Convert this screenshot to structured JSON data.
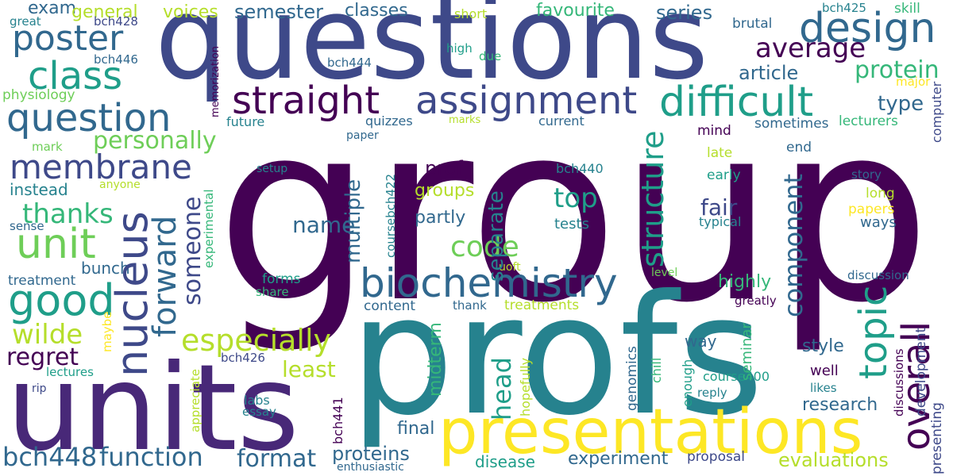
{
  "colors": {
    "background": "#ffffff",
    "palette": [
      "#440154",
      "#482878",
      "#3e4989",
      "#31688e",
      "#26828e",
      "#1f9e89",
      "#35b779",
      "#6ece58",
      "#b5de2b",
      "#fde725"
    ]
  },
  "words": {
    "group": "group",
    "questions": "questions",
    "profs": "profs",
    "units": "units",
    "presentations": "presentations",
    "design": "design",
    "poster": "poster",
    "class": "class",
    "question": "question",
    "straight": "straight",
    "assignment": "assignment",
    "difficult": "difficult",
    "membrane": "membrane",
    "unit": "unit",
    "good": "good",
    "nucleus": "nucleus",
    "forward": "forward",
    "biochemistry": "biochemistry",
    "topic": "topic",
    "overall": "overall",
    "average": "average",
    "protein": "protein",
    "article": "article",
    "type": "type",
    "structure": "structure",
    "component": "component",
    "thanks": "thanks",
    "personally": "personally",
    "someone": "someone",
    "wilde": "wilde",
    "especially": "especially",
    "code": "code",
    "top": "top",
    "head": "head",
    "separate": "separate",
    "multiple": "multiple",
    "name": "name",
    "regret": "regret",
    "least": "least",
    "bch448": "bch448",
    "function": "function",
    "format": "format",
    "proteins": "proteins",
    "evaluations": "evaluations",
    "experiment": "experiment",
    "disease": "disease",
    "final": "final",
    "midterm": "midterm",
    "research": "research",
    "style": "style",
    "highly": "highly",
    "fair": "fair",
    "exam": "exam",
    "general": "general",
    "voices": "voices",
    "semester": "semester",
    "classes": "classes",
    "short": "short",
    "favourite": "favourite",
    "series": "series",
    "bch425": "bch425",
    "skill": "skill",
    "great": "great",
    "bch428": "bch428",
    "brutal": "brutal",
    "high": "high",
    "due": "due",
    "bch446": "bch446",
    "bch444": "bch444",
    "major": "major",
    "memorization": "memorization",
    "physiology": "physiology",
    "future": "future",
    "quizzes": "quizzes",
    "marks": "marks",
    "current": "current",
    "mind": "mind",
    "sometimes": "sometimes",
    "lecturers": "lecturers",
    "computer": "computer",
    "paper": "paper",
    "mark": "mark",
    "end": "end",
    "late": "late",
    "prof": "prof",
    "setup": "setup",
    "bch440": "bch440",
    "coursebch422": "coursebch422",
    "early": "early",
    "story": "story",
    "instead": "instead",
    "anyone": "anyone",
    "experimental": "experimental",
    "groups": "groups",
    "long": "long",
    "papers": "papers",
    "partly": "partly",
    "tests": "tests",
    "typical": "typical",
    "ways": "ways",
    "sense": "sense",
    "uoft": "uoft",
    "bunch": "bunch",
    "forms": "forms",
    "level": "level",
    "discussion": "discussion",
    "treatment": "treatment",
    "share": "share",
    "content": "content",
    "thank": "thank",
    "treatments": "treatments",
    "greatly": "greatly",
    "maybe": "maybe",
    "bch426": "bch426",
    "genomics": "genomics",
    "way": "way",
    "seminar": "seminar",
    "chill": "chill",
    "enough": "enough",
    "course400": "course400",
    "well": "well",
    "likes": "likes",
    "discussions": "discussions",
    "development": "development",
    "presenting": "presenting",
    "lectures": "lectures",
    "appreciate": "appreciate",
    "rip": "rip",
    "labs": "labs",
    "essay": "essay",
    "bch441": "bch441",
    "hopefully": "hopefully",
    "reply": "reply",
    "proposal": "proposal",
    "enthusiastic": "enthusiastic"
  }
}
